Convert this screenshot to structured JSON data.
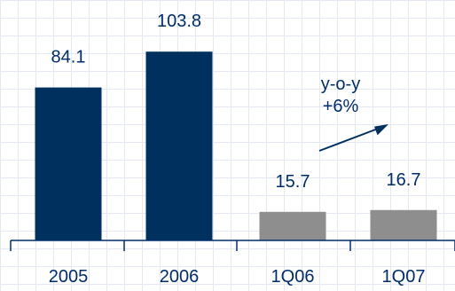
{
  "chart_data": {
    "type": "bar",
    "categories": [
      "2005",
      "2006",
      "1Q06",
      "1Q07"
    ],
    "values": [
      84.1,
      103.8,
      15.7,
      16.7
    ],
    "value_labels": [
      "84.1",
      "103.8",
      "15.7",
      "16.7"
    ],
    "title": "",
    "xlabel": "",
    "ylabel": "",
    "ylim": [
      0,
      115
    ],
    "grid": true,
    "colors": [
      "#00305e",
      "#00305e",
      "#8e8e8e",
      "#8e8e8e"
    ],
    "annotation": {
      "line1": "y-o-y",
      "line2": "+6%",
      "arrow_color": "#00305e"
    }
  }
}
